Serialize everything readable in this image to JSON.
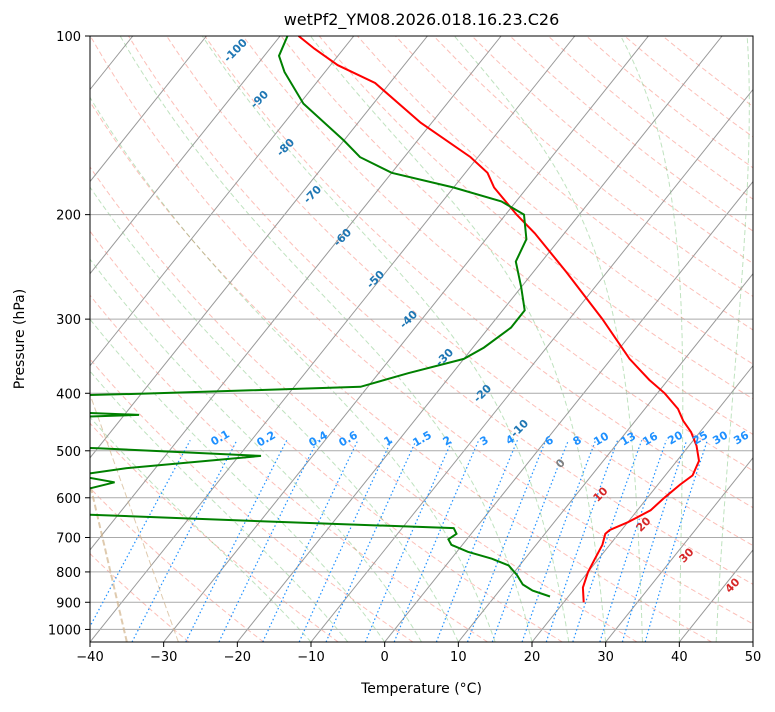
{
  "chart_data": {
    "type": "line",
    "title": "wetPf2_YM08.2026.018.16.23.C26",
    "xlabel": "Temperature (°C)",
    "ylabel": "Pressure (hPa)",
    "xlim": [
      -40,
      50
    ],
    "ylim": [
      1050,
      100
    ],
    "y_scale": "log",
    "x_ticks": [
      -40,
      -30,
      -20,
      -10,
      0,
      10,
      20,
      30,
      40,
      50
    ],
    "y_ticks": [
      100,
      200,
      300,
      400,
      500,
      600,
      700,
      800,
      900,
      1000
    ],
    "grid": true,
    "skew": true,
    "series": [
      {
        "role": "temperature",
        "color": "#ff0000",
        "points": [
          {
            "p": 900,
            "t": 22.7
          },
          {
            "p": 850,
            "t": 21.0
          },
          {
            "p": 800,
            "t": 20.0
          },
          {
            "p": 760,
            "t": 19.5
          },
          {
            "p": 720,
            "t": 19.0
          },
          {
            "p": 690,
            "t": 18.2
          },
          {
            "p": 680,
            "t": 18.4
          },
          {
            "p": 660,
            "t": 20.0
          },
          {
            "p": 630,
            "t": 21.8
          },
          {
            "p": 600,
            "t": 22.3
          },
          {
            "p": 570,
            "t": 23.0
          },
          {
            "p": 550,
            "t": 23.7
          },
          {
            "p": 520,
            "t": 23.0
          },
          {
            "p": 490,
            "t": 21.0
          },
          {
            "p": 465,
            "t": 18.8
          },
          {
            "p": 445,
            "t": 16.5
          },
          {
            "p": 425,
            "t": 14.5
          },
          {
            "p": 400,
            "t": 11.0
          },
          {
            "p": 380,
            "t": 7.5
          },
          {
            "p": 350,
            "t": 2.5
          },
          {
            "p": 300,
            "t": -5.5
          },
          {
            "p": 250,
            "t": -15.5
          },
          {
            "p": 215,
            "t": -24.0
          },
          {
            "p": 200,
            "t": -28.5
          },
          {
            "p": 180,
            "t": -34.5
          },
          {
            "p": 170,
            "t": -37.0
          },
          {
            "p": 160,
            "t": -41.0
          },
          {
            "p": 140,
            "t": -51.5
          },
          {
            "p": 120,
            "t": -62.0
          },
          {
            "p": 112,
            "t": -69.0
          },
          {
            "p": 105,
            "t": -74.0
          },
          {
            "p": 100,
            "t": -77.5
          }
        ]
      },
      {
        "role": "dewpoint",
        "color": "#008000",
        "points": [
          {
            "p": 880,
            "t": 17.5
          },
          {
            "p": 860,
            "t": 14.5
          },
          {
            "p": 840,
            "t": 12.5
          },
          {
            "p": 810,
            "t": 10.7
          },
          {
            "p": 780,
            "t": 8.5
          },
          {
            "p": 760,
            "t": 5.5
          },
          {
            "p": 740,
            "t": 1.5
          },
          {
            "p": 720,
            "t": -1.5
          },
          {
            "p": 705,
            "t": -2.5
          },
          {
            "p": 690,
            "t": -2.0
          },
          {
            "p": 675,
            "t": -3.0
          },
          {
            "p": 660,
            "t": -26.0
          },
          {
            "p": 640,
            "t": -55.0
          },
          {
            "p": 630,
            "t": -90.0
          },
          {
            "p": 610,
            "t": -90.0
          },
          {
            "p": 600,
            "t": -66.0
          },
          {
            "p": 585,
            "t": -58.0
          },
          {
            "p": 565,
            "t": -54.0
          },
          {
            "p": 550,
            "t": -60.0
          },
          {
            "p": 535,
            "t": -54.0
          },
          {
            "p": 510,
            "t": -37.0
          },
          {
            "p": 495,
            "t": -60.0
          },
          {
            "p": 485,
            "t": -90.0
          },
          {
            "p": 448,
            "t": -90.0
          },
          {
            "p": 435,
            "t": -58.0
          },
          {
            "p": 420,
            "t": -90.0
          },
          {
            "p": 410,
            "t": -90.0
          },
          {
            "p": 400,
            "t": -58.0
          },
          {
            "p": 390,
            "t": -31.0
          },
          {
            "p": 370,
            "t": -26.0
          },
          {
            "p": 350,
            "t": -20.0
          },
          {
            "p": 335,
            "t": -18.5
          },
          {
            "p": 310,
            "t": -17.0
          },
          {
            "p": 290,
            "t": -17.0
          },
          {
            "p": 265,
            "t": -20.0
          },
          {
            "p": 240,
            "t": -23.5
          },
          {
            "p": 220,
            "t": -24.5
          },
          {
            "p": 200,
            "t": -27.5
          },
          {
            "p": 190,
            "t": -32.0
          },
          {
            "p": 180,
            "t": -40.0
          },
          {
            "p": 170,
            "t": -50.0
          },
          {
            "p": 160,
            "t": -56.0
          },
          {
            "p": 150,
            "t": -60.0
          },
          {
            "p": 130,
            "t": -69.5
          },
          {
            "p": 115,
            "t": -75.5
          },
          {
            "p": 108,
            "t": -78.0
          },
          {
            "p": 100,
            "t": -79.0
          }
        ]
      }
    ],
    "isotherm_labels": {
      "color": "#1f77b4",
      "values": [
        "-100",
        "-90",
        "-80",
        "-70",
        "-60",
        "-50",
        "-40",
        "-30",
        "-20",
        "-10"
      ]
    },
    "mixing_ratio_labels": {
      "color": "#1e90ff",
      "values": [
        "0.1",
        "0.2",
        "0.4",
        "0.6",
        "1",
        "1.5",
        "2",
        "3",
        "4",
        "6",
        "8",
        "10",
        "13",
        "16",
        "20",
        "25",
        "30",
        "36"
      ]
    },
    "wet_bulb_labels": {
      "color": "#d62728",
      "values": [
        "0",
        "10",
        "20",
        "30",
        "40"
      ]
    }
  }
}
